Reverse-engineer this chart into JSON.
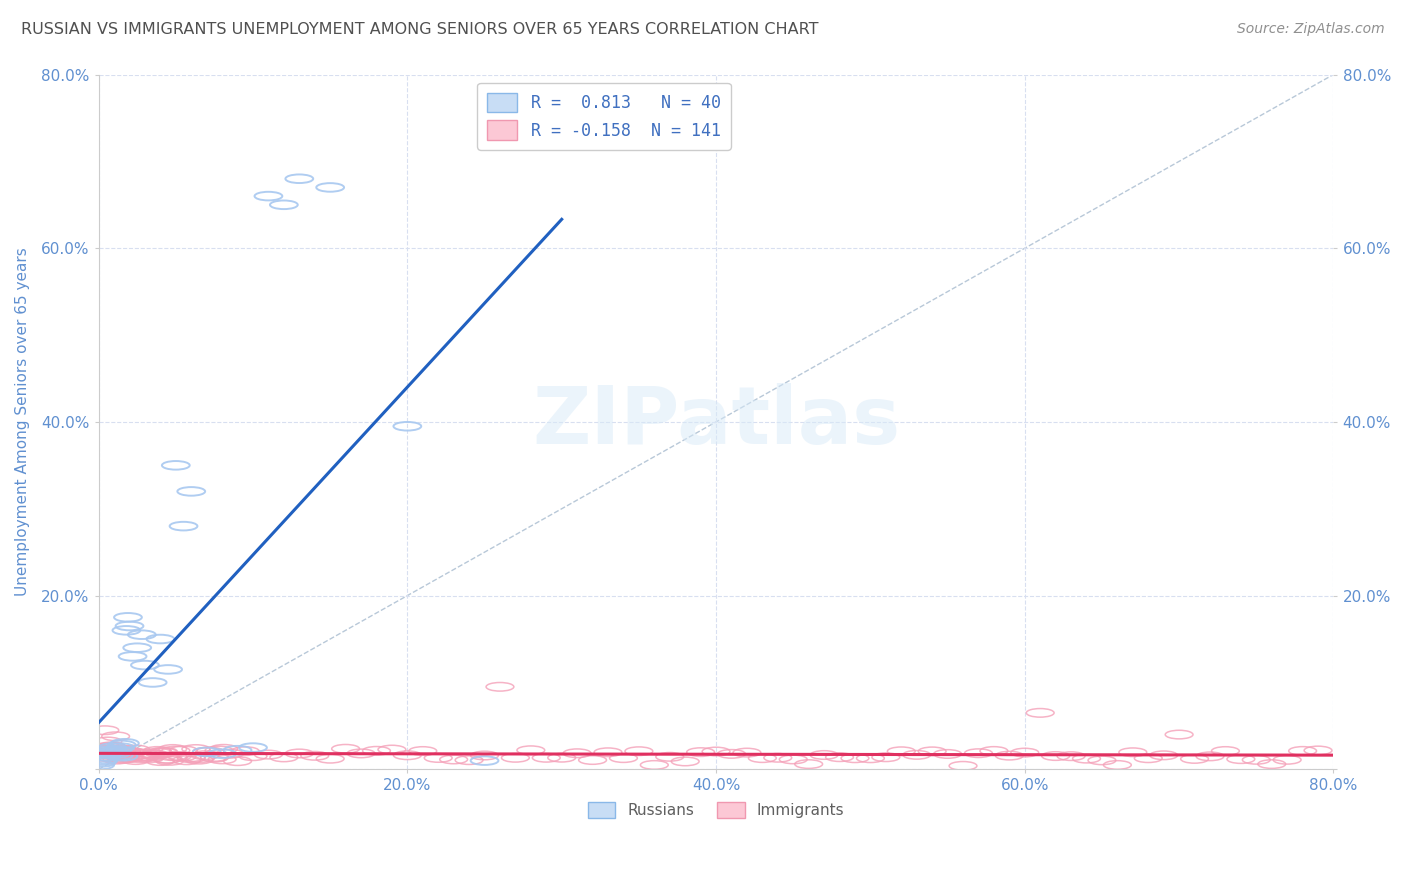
{
  "title": "RUSSIAN VS IMMIGRANTS UNEMPLOYMENT AMONG SENIORS OVER 65 YEARS CORRELATION CHART",
  "source": "Source: ZipAtlas.com",
  "ylabel": "Unemployment Among Seniors over 65 years",
  "xlim": [
    0.0,
    0.8
  ],
  "ylim": [
    0.0,
    0.8
  ],
  "russians_R": 0.813,
  "russians_N": 40,
  "immigrants_R": -0.158,
  "immigrants_N": 141,
  "russian_color": "#a8c8f0",
  "russian_line_color": "#2060c0",
  "immigrant_color": "#f4a0b8",
  "immigrant_line_color": "#e03060",
  "background_color": "#ffffff",
  "grid_color": "#d8dff0",
  "title_color": "#505050",
  "source_color": "#909090",
  "axis_label_color": "#6090d0",
  "watermark": "ZIPatlas",
  "russians_x": [
    0.001,
    0.002,
    0.003,
    0.004,
    0.005,
    0.006,
    0.007,
    0.008,
    0.009,
    0.01,
    0.011,
    0.012,
    0.013,
    0.014,
    0.015,
    0.016,
    0.017,
    0.018,
    0.019,
    0.02,
    0.022,
    0.025,
    0.028,
    0.03,
    0.035,
    0.04,
    0.045,
    0.05,
    0.055,
    0.06,
    0.07,
    0.08,
    0.09,
    0.1,
    0.11,
    0.12,
    0.13,
    0.15,
    0.2,
    0.25
  ],
  "russians_y": [
    0.005,
    0.008,
    0.01,
    0.012,
    0.015,
    0.018,
    0.02,
    0.022,
    0.025,
    0.02,
    0.018,
    0.022,
    0.016,
    0.025,
    0.028,
    0.015,
    0.03,
    0.16,
    0.175,
    0.165,
    0.13,
    0.14,
    0.155,
    0.12,
    0.1,
    0.15,
    0.115,
    0.35,
    0.28,
    0.32,
    0.02,
    0.018,
    0.022,
    0.025,
    0.66,
    0.65,
    0.68,
    0.67,
    0.395,
    0.01
  ],
  "immigrants_x": [
    0.001,
    0.002,
    0.003,
    0.004,
    0.005,
    0.006,
    0.007,
    0.008,
    0.009,
    0.01,
    0.011,
    0.012,
    0.013,
    0.014,
    0.015,
    0.016,
    0.017,
    0.018,
    0.019,
    0.02,
    0.022,
    0.024,
    0.026,
    0.028,
    0.03,
    0.032,
    0.034,
    0.036,
    0.038,
    0.04,
    0.042,
    0.044,
    0.046,
    0.048,
    0.05,
    0.055,
    0.06,
    0.065,
    0.07,
    0.075,
    0.08,
    0.085,
    0.09,
    0.095,
    0.1,
    0.11,
    0.12,
    0.13,
    0.14,
    0.15,
    0.16,
    0.17,
    0.18,
    0.19,
    0.2,
    0.21,
    0.22,
    0.23,
    0.24,
    0.25,
    0.26,
    0.27,
    0.28,
    0.29,
    0.3,
    0.31,
    0.32,
    0.33,
    0.34,
    0.35,
    0.36,
    0.37,
    0.38,
    0.39,
    0.4,
    0.41,
    0.42,
    0.43,
    0.44,
    0.45,
    0.46,
    0.47,
    0.48,
    0.49,
    0.5,
    0.51,
    0.52,
    0.53,
    0.54,
    0.55,
    0.56,
    0.57,
    0.58,
    0.59,
    0.6,
    0.61,
    0.62,
    0.63,
    0.64,
    0.65,
    0.66,
    0.67,
    0.68,
    0.69,
    0.7,
    0.71,
    0.72,
    0.73,
    0.74,
    0.75,
    0.76,
    0.77,
    0.78,
    0.79,
    0.003,
    0.006,
    0.009,
    0.012,
    0.015,
    0.018,
    0.021,
    0.024,
    0.027,
    0.03,
    0.033,
    0.036,
    0.039,
    0.042,
    0.045,
    0.048,
    0.051,
    0.054,
    0.057,
    0.06,
    0.063,
    0.066,
    0.069,
    0.072,
    0.075,
    0.078,
    0.081
  ],
  "immigrants_y": [
    0.02,
    0.018,
    0.022,
    0.015,
    0.025,
    0.018,
    0.02,
    0.022,
    0.015,
    0.018,
    0.022,
    0.015,
    0.018,
    0.02,
    0.016,
    0.018,
    0.015,
    0.02,
    0.018,
    0.016,
    0.018,
    0.015,
    0.02,
    0.016,
    0.018,
    0.015,
    0.018,
    0.016,
    0.02,
    0.015,
    0.018,
    0.016,
    0.015,
    0.018,
    0.016,
    0.018,
    0.015,
    0.016,
    0.018,
    0.015,
    0.016,
    0.018,
    0.015,
    0.016,
    0.018,
    0.015,
    0.016,
    0.018,
    0.015,
    0.016,
    0.018,
    0.015,
    0.016,
    0.018,
    0.015,
    0.016,
    0.018,
    0.015,
    0.016,
    0.018,
    0.015,
    0.016,
    0.018,
    0.015,
    0.016,
    0.018,
    0.015,
    0.016,
    0.018,
    0.015,
    0.016,
    0.018,
    0.015,
    0.016,
    0.018,
    0.015,
    0.016,
    0.018,
    0.015,
    0.016,
    0.018,
    0.015,
    0.016,
    0.018,
    0.015,
    0.016,
    0.018,
    0.015,
    0.016,
    0.018,
    0.015,
    0.016,
    0.018,
    0.015,
    0.016,
    0.018,
    0.015,
    0.016,
    0.018,
    0.015,
    0.016,
    0.018,
    0.015,
    0.016,
    0.018,
    0.015,
    0.016,
    0.018,
    0.015,
    0.016,
    0.018,
    0.015,
    0.016,
    0.018,
    0.02,
    0.018,
    0.022,
    0.015,
    0.018,
    0.02,
    0.016,
    0.018,
    0.015,
    0.02,
    0.016,
    0.018,
    0.015,
    0.016,
    0.018,
    0.015,
    0.016,
    0.018,
    0.015,
    0.016,
    0.018,
    0.015,
    0.016,
    0.018,
    0.015,
    0.016,
    0.018
  ]
}
